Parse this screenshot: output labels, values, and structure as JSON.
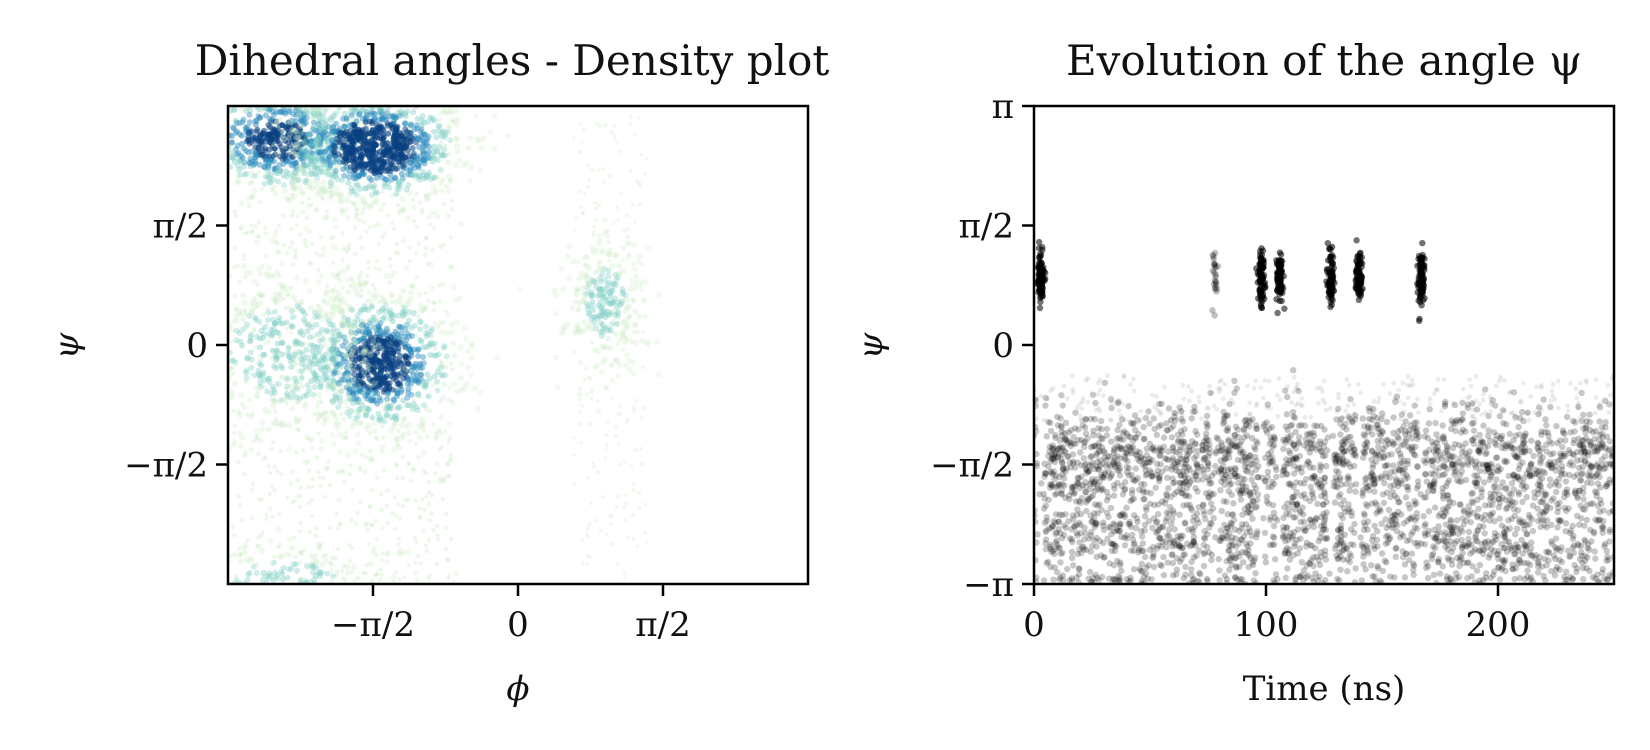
{
  "chart_data": [
    {
      "type": "heatmap",
      "title": "Dihedral angles - Density plot",
      "xlabel": "ϕ",
      "ylabel": "ψ",
      "xlim": [
        -3.1416,
        3.1416
      ],
      "ylim": [
        -3.1416,
        3.1416
      ],
      "x_ticks": [
        {
          "value": -1.5708,
          "label": "−π/2"
        },
        {
          "value": 0,
          "label": "0"
        },
        {
          "value": 1.5708,
          "label": "π/2"
        }
      ],
      "y_ticks": [
        {
          "value": -1.5708,
          "label": "−π/2"
        },
        {
          "value": 0,
          "label": "0"
        },
        {
          "value": 1.5708,
          "label": "π/2"
        }
      ],
      "colormap": [
        "#f7fcf0",
        "#ccebc5",
        "#7bccc4",
        "#2b8cbe",
        "#084081"
      ],
      "grid": false,
      "density_peaks": [
        {
          "phi": -2.6,
          "psi": 2.7,
          "density": 0.8
        },
        {
          "phi": -1.55,
          "psi": 2.6,
          "density": 1.0
        },
        {
          "phi": -1.5,
          "psi": -0.25,
          "density": 0.85
        },
        {
          "phi": -2.5,
          "psi": -0.1,
          "density": 0.35
        },
        {
          "phi": 0.95,
          "psi": 0.55,
          "density": 0.3
        },
        {
          "phi": -2.5,
          "psi": -3.1,
          "density": 0.3
        }
      ]
    },
    {
      "type": "scatter",
      "title": "Evolution of the angle ψ",
      "xlabel": "Time (ns)",
      "ylabel": "ψ",
      "xlim": [
        0,
        250
      ],
      "ylim": [
        -3.1416,
        3.1416
      ],
      "x_ticks": [
        {
          "value": 0,
          "label": "0"
        },
        {
          "value": 100,
          "label": "100"
        },
        {
          "value": 200,
          "label": "200"
        }
      ],
      "y_ticks": [
        {
          "value": -3.1416,
          "label": "−π"
        },
        {
          "value": -1.5708,
          "label": "−π/2"
        },
        {
          "value": 0,
          "label": "0"
        },
        {
          "value": 1.5708,
          "label": "π/2"
        },
        {
          "value": 3.1416,
          "label": "π"
        }
      ],
      "grid": false,
      "point_color": "#000000",
      "main_band": {
        "center": -1.55,
        "spread": 0.7
      },
      "lower_band": {
        "center": -2.65,
        "spread": 0.45
      },
      "upper_state": {
        "center": 0.9,
        "spread": 0.3
      },
      "transition_times": [
        3,
        78,
        98,
        106,
        128,
        140,
        167
      ]
    }
  ]
}
